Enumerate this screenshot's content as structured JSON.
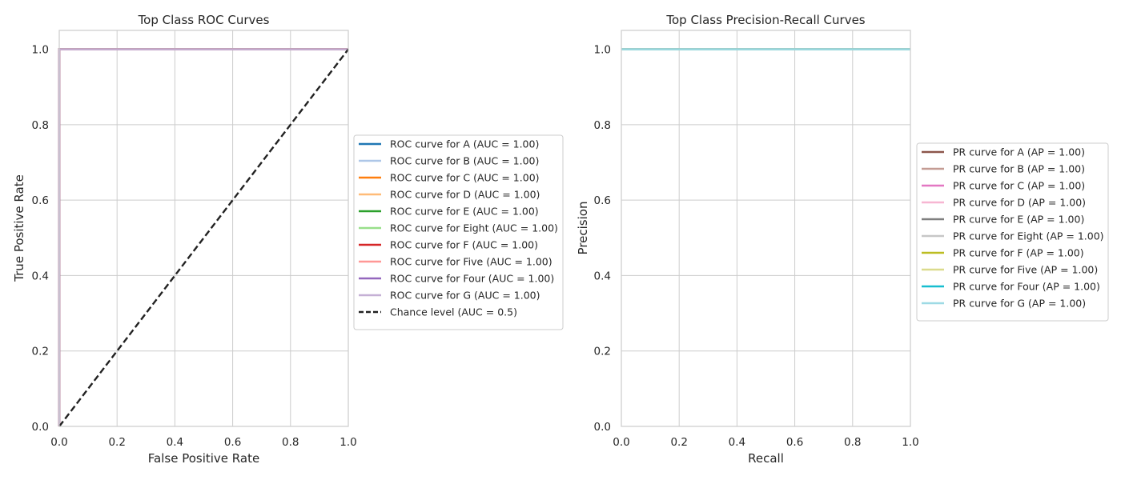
{
  "chart_data": [
    {
      "type": "line",
      "title": "Top Class ROC Curves",
      "xlabel": "False Positive Rate",
      "ylabel": "True Positive Rate",
      "xlim": [
        0,
        1
      ],
      "ylim": [
        0,
        1.05
      ],
      "xticks": [
        "0.0",
        "0.2",
        "0.4",
        "0.6",
        "0.8",
        "1.0"
      ],
      "yticks": [
        "0.0",
        "0.2",
        "0.4",
        "0.6",
        "0.8",
        "1.0"
      ],
      "grid": true,
      "legend_position": "outside-right",
      "series": [
        {
          "name": "ROC curve for A (AUC = 1.00)",
          "color": "#1f77b4",
          "x": [
            0,
            0,
            1
          ],
          "y": [
            0,
            1,
            1
          ]
        },
        {
          "name": "ROC curve for B (AUC = 1.00)",
          "color": "#aec7e8",
          "x": [
            0,
            0,
            1
          ],
          "y": [
            0,
            1,
            1
          ]
        },
        {
          "name": "ROC curve for C (AUC = 1.00)",
          "color": "#ff7f0e",
          "x": [
            0,
            0,
            1
          ],
          "y": [
            0,
            1,
            1
          ]
        },
        {
          "name": "ROC curve for D (AUC = 1.00)",
          "color": "#ffbb78",
          "x": [
            0,
            0,
            1
          ],
          "y": [
            0,
            1,
            1
          ]
        },
        {
          "name": "ROC curve for E (AUC = 1.00)",
          "color": "#2ca02c",
          "x": [
            0,
            0,
            1
          ],
          "y": [
            0,
            1,
            1
          ]
        },
        {
          "name": "ROC curve for Eight (AUC = 1.00)",
          "color": "#98df8a",
          "x": [
            0,
            0,
            1
          ],
          "y": [
            0,
            1,
            1
          ]
        },
        {
          "name": "ROC curve for F (AUC = 1.00)",
          "color": "#d62728",
          "x": [
            0,
            0,
            1
          ],
          "y": [
            0,
            1,
            1
          ]
        },
        {
          "name": "ROC curve for Five (AUC = 1.00)",
          "color": "#ff9896",
          "x": [
            0,
            0,
            1
          ],
          "y": [
            0,
            1,
            1
          ]
        },
        {
          "name": "ROC curve for Four (AUC = 1.00)",
          "color": "#9467bd",
          "x": [
            0,
            0,
            1
          ],
          "y": [
            0,
            1,
            1
          ]
        },
        {
          "name": "ROC curve for G (AUC = 1.00)",
          "color": "#c5b0d5",
          "x": [
            0,
            0,
            1
          ],
          "y": [
            0,
            1,
            1
          ]
        },
        {
          "name": "Chance level (AUC = 0.5)",
          "color": "#222222",
          "dashed": true,
          "x": [
            0,
            1
          ],
          "y": [
            0,
            1
          ]
        }
      ]
    },
    {
      "type": "line",
      "title": "Top Class Precision-Recall Curves",
      "xlabel": "Recall",
      "ylabel": "Precision",
      "xlim": [
        0,
        1
      ],
      "ylim": [
        0,
        1.05
      ],
      "xticks": [
        "0.0",
        "0.2",
        "0.4",
        "0.6",
        "0.8",
        "1.0"
      ],
      "yticks": [
        "0.0",
        "0.2",
        "0.4",
        "0.6",
        "0.8",
        "1.0"
      ],
      "grid": true,
      "legend_position": "outside-right",
      "series": [
        {
          "name": "PR curve for A (AP = 1.00)",
          "color": "#8c564b",
          "x": [
            0,
            1
          ],
          "y": [
            1,
            1
          ]
        },
        {
          "name": "PR curve for B (AP = 1.00)",
          "color": "#c49c94",
          "x": [
            0,
            1
          ],
          "y": [
            1,
            1
          ]
        },
        {
          "name": "PR curve for C (AP = 1.00)",
          "color": "#e377c2",
          "x": [
            0,
            1
          ],
          "y": [
            1,
            1
          ]
        },
        {
          "name": "PR curve for D (AP = 1.00)",
          "color": "#f7b6d2",
          "x": [
            0,
            1
          ],
          "y": [
            1,
            1
          ]
        },
        {
          "name": "PR curve for E (AP = 1.00)",
          "color": "#7f7f7f",
          "x": [
            0,
            1
          ],
          "y": [
            1,
            1
          ]
        },
        {
          "name": "PR curve for Eight (AP = 1.00)",
          "color": "#c7c7c7",
          "x": [
            0,
            1
          ],
          "y": [
            1,
            1
          ]
        },
        {
          "name": "PR curve for F (AP = 1.00)",
          "color": "#bcbd22",
          "x": [
            0,
            1
          ],
          "y": [
            1,
            1
          ]
        },
        {
          "name": "PR curve for Five (AP = 1.00)",
          "color": "#dbdb8d",
          "x": [
            0,
            1
          ],
          "y": [
            1,
            1
          ]
        },
        {
          "name": "PR curve for Four (AP = 1.00)",
          "color": "#17becf",
          "x": [
            0,
            1
          ],
          "y": [
            1,
            1
          ]
        },
        {
          "name": "PR curve for G (AP = 1.00)",
          "color": "#9edae5",
          "x": [
            0,
            1
          ],
          "y": [
            1,
            1
          ]
        }
      ]
    }
  ]
}
